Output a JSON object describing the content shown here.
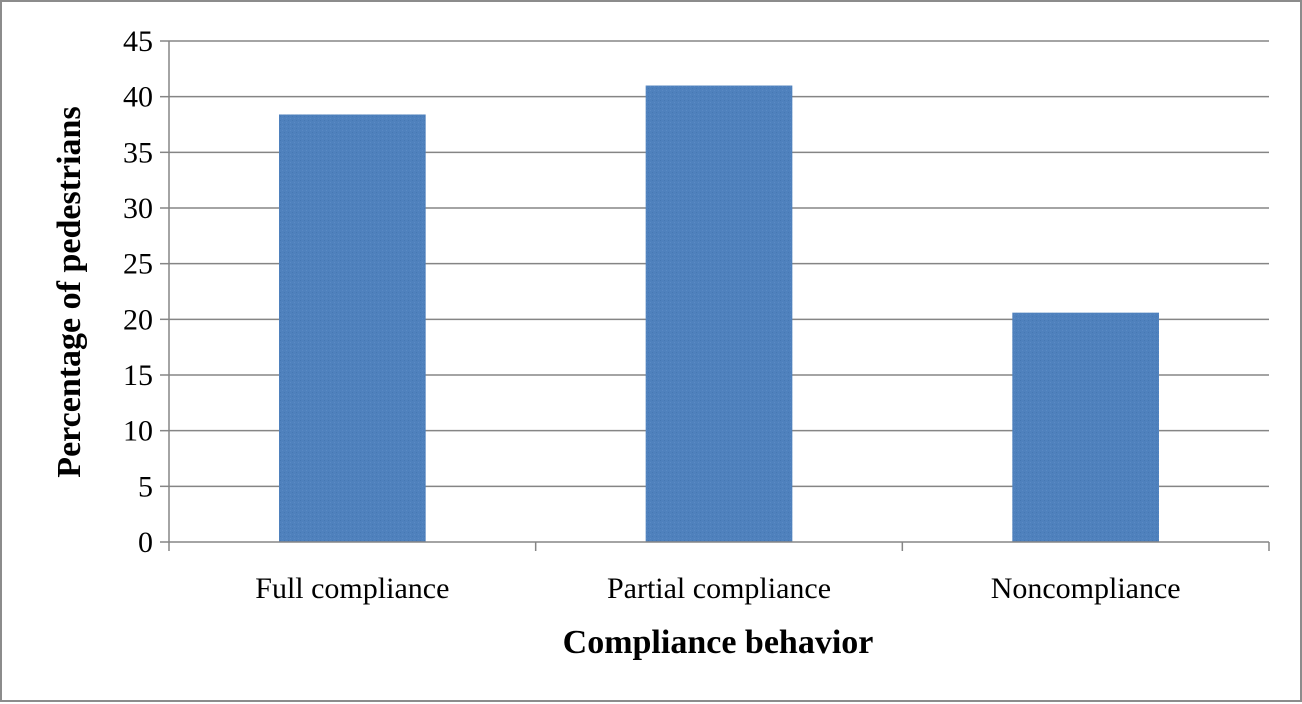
{
  "chart_data": {
    "type": "bar",
    "title": "",
    "xlabel": "Compliance behavior",
    "ylabel": "Percentage of pedestrians",
    "categories": [
      "Full compliance",
      "Partial compliance",
      "Noncompliance"
    ],
    "values": [
      38.4,
      41.0,
      20.6
    ],
    "ylim": [
      0,
      45
    ],
    "yticks": [
      "0",
      "5",
      "10",
      "15",
      "20",
      "25",
      "30",
      "35",
      "40",
      "45"
    ],
    "grid": true,
    "legend": "none",
    "bar_color": "#4f81bd",
    "grid_color": "#858585",
    "axis_color": "#858585"
  }
}
